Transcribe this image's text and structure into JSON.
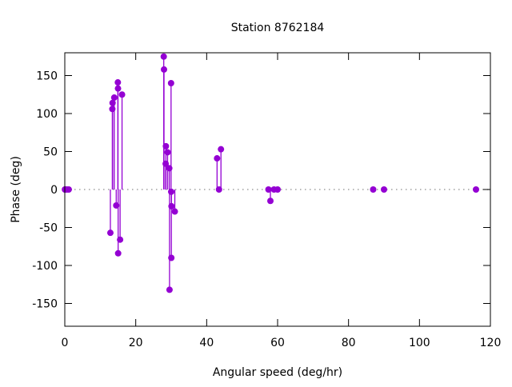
{
  "chart_data": {
    "type": "scatter",
    "style": "impulses-with-points",
    "title": "Station 8762184",
    "xlabel": "Angular speed (deg/hr)",
    "ylabel": "Phase (deg)",
    "xlim": [
      0,
      120
    ],
    "ylim": [
      -180,
      180
    ],
    "xticks": [
      0,
      20,
      40,
      60,
      80,
      100,
      120
    ],
    "yticks": [
      -150,
      -100,
      -50,
      0,
      50,
      100,
      150
    ],
    "grid": false,
    "zero_line": "dotted",
    "color": "#9400d3",
    "points": [
      {
        "x": 0.04,
        "y": 0
      },
      {
        "x": 0.08,
        "y": 0
      },
      {
        "x": 0.54,
        "y": 0
      },
      {
        "x": 1.1,
        "y": 0
      },
      {
        "x": 12.85,
        "y": -57
      },
      {
        "x": 13.4,
        "y": 106
      },
      {
        "x": 13.47,
        "y": 114
      },
      {
        "x": 13.94,
        "y": 121
      },
      {
        "x": 14.5,
        "y": -21
      },
      {
        "x": 14.96,
        "y": 141
      },
      {
        "x": 15.0,
        "y": 133
      },
      {
        "x": 15.04,
        "y": -84
      },
      {
        "x": 15.59,
        "y": -66
      },
      {
        "x": 16.14,
        "y": 125
      },
      {
        "x": 27.9,
        "y": 175
      },
      {
        "x": 27.97,
        "y": 158
      },
      {
        "x": 28.44,
        "y": 34
      },
      {
        "x": 28.51,
        "y": 57
      },
      {
        "x": 28.98,
        "y": 49
      },
      {
        "x": 29.46,
        "y": 28
      },
      {
        "x": 29.53,
        "y": -132
      },
      {
        "x": 29.96,
        "y": 140
      },
      {
        "x": 30.0,
        "y": -3
      },
      {
        "x": 30.04,
        "y": -90
      },
      {
        "x": 30.08,
        "y": -22
      },
      {
        "x": 31.02,
        "y": -29
      },
      {
        "x": 42.93,
        "y": 41
      },
      {
        "x": 43.48,
        "y": 0
      },
      {
        "x": 44.03,
        "y": 53
      },
      {
        "x": 57.42,
        "y": 0
      },
      {
        "x": 57.97,
        "y": -15
      },
      {
        "x": 58.98,
        "y": 0
      },
      {
        "x": 60.0,
        "y": 0
      },
      {
        "x": 86.95,
        "y": 0
      },
      {
        "x": 90.0,
        "y": 0
      },
      {
        "x": 115.94,
        "y": 0
      }
    ]
  }
}
